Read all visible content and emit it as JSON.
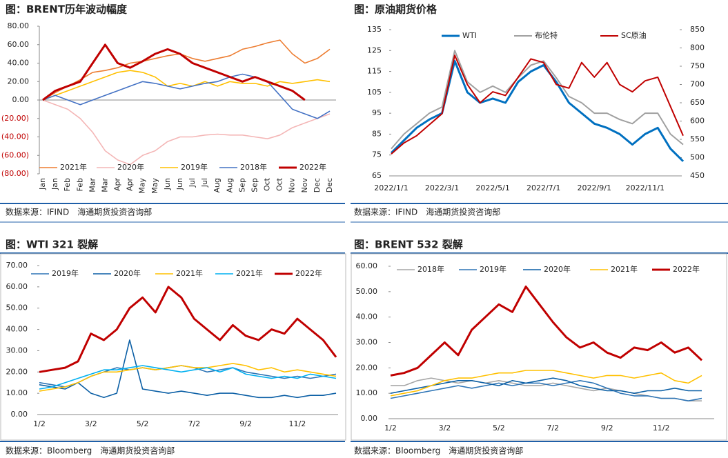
{
  "chart_data": [
    {
      "type": "line",
      "title": "图：BRENT历年波动幅度",
      "source": "数据来源：IFIND　海通期货投资咨询部",
      "categories": [
        "Jan",
        "Jan",
        "Feb",
        "Feb",
        "Mar",
        "Mar",
        "Apr",
        "Apr",
        "May",
        "May",
        "Jun",
        "Jun",
        "Jul",
        "Jul",
        "Aug",
        "Aug",
        "Sep",
        "Sep",
        "Oct",
        "Oct",
        "Nov",
        "Nov",
        "Dec",
        "Dec"
      ],
      "ylim": [
        -80,
        80
      ],
      "yticks": [
        {
          "value": 80,
          "label": "80.00"
        },
        {
          "value": 60,
          "label": "60.00"
        },
        {
          "value": 40,
          "label": "40.00"
        },
        {
          "value": 20,
          "label": "20.00"
        },
        {
          "value": 0,
          "label": "0.00"
        },
        {
          "value": -20,
          "label": "(20.00)"
        },
        {
          "value": -40,
          "label": "(40.00)"
        },
        {
          "value": -60,
          "label": "(60.00)"
        },
        {
          "value": -80,
          "label": "(80.00)"
        }
      ],
      "negative_tick_color": "#c00000",
      "legend": "bottom",
      "series": [
        {
          "name": "2021年",
          "color": "#ed7d31",
          "line_width": 1.6,
          "values": [
            0,
            8,
            15,
            22,
            30,
            32,
            35,
            40,
            42,
            45,
            48,
            50,
            45,
            42,
            45,
            48,
            55,
            58,
            62,
            65,
            50,
            40,
            45,
            55
          ]
        },
        {
          "name": "2020年",
          "color": "#f4b6b6",
          "line_width": 1.6,
          "values": [
            0,
            -5,
            -10,
            -20,
            -35,
            -55,
            -65,
            -70,
            -60,
            -55,
            -45,
            -40,
            -40,
            -38,
            -37,
            -38,
            -38,
            -40,
            -42,
            -38,
            -30,
            -25,
            -20,
            -15
          ]
        },
        {
          "name": "2019年",
          "color": "#ffc000",
          "line_width": 1.6,
          "values": [
            0,
            5,
            10,
            15,
            20,
            25,
            30,
            32,
            30,
            25,
            15,
            18,
            15,
            20,
            15,
            20,
            18,
            18,
            15,
            20,
            18,
            20,
            22,
            20
          ]
        },
        {
          "name": "2018年",
          "color": "#4472c4",
          "line_width": 1.6,
          "values": [
            0,
            5,
            0,
            -5,
            0,
            5,
            10,
            15,
            20,
            18,
            15,
            12,
            15,
            18,
            20,
            25,
            28,
            25,
            20,
            5,
            -10,
            -15,
            -20,
            -12
          ]
        },
        {
          "name": "2022年",
          "color": "#c00000",
          "line_width": 3,
          "values": [
            0,
            10,
            15,
            20,
            40,
            60,
            40,
            35,
            42,
            50,
            55,
            50,
            40,
            35,
            30,
            25,
            20,
            25,
            20,
            15,
            10,
            0,
            null,
            null
          ]
        }
      ]
    },
    {
      "type": "line",
      "title": "图：原油期货价格",
      "source": "数据来源：IFIND　海通期货投资咨询部",
      "categories": [
        "2022/1/1",
        null,
        null,
        null,
        "2022/3/1",
        null,
        null,
        null,
        "2022/5/1",
        null,
        null,
        null,
        "2022/7/1",
        null,
        null,
        null,
        "2022/9/1",
        null,
        null,
        null,
        "2022/11/1",
        null,
        null,
        null
      ],
      "ylim": [
        65,
        135
      ],
      "yticks": [
        65,
        75,
        85,
        95,
        105,
        115,
        125,
        135
      ],
      "y2lim": [
        450,
        850
      ],
      "y2ticks": [
        450,
        500,
        550,
        600,
        650,
        700,
        750,
        800,
        850
      ],
      "legend": "top",
      "series": [
        {
          "name": "WTI",
          "color": "#0070c0",
          "line_width": 3,
          "values": [
            76,
            82,
            88,
            92,
            95,
            120,
            105,
            100,
            102,
            100,
            110,
            115,
            118,
            110,
            100,
            95,
            90,
            88,
            85,
            80,
            85,
            88,
            78,
            72
          ]
        },
        {
          "name": "布伦特",
          "color": "#a0a0a0",
          "line_width": 2,
          "values": [
            78,
            85,
            90,
            95,
            98,
            125,
            110,
            105,
            108,
            105,
            112,
            118,
            120,
            112,
            103,
            100,
            95,
            95,
            92,
            90,
            95,
            95,
            85,
            80
          ]
        },
        {
          "name": "SC原油",
          "color": "#c00000",
          "line_width": 2,
          "axis": "y2",
          "values": [
            510,
            540,
            560,
            590,
            620,
            780,
            700,
            650,
            680,
            670,
            720,
            770,
            760,
            700,
            690,
            760,
            720,
            760,
            700,
            680,
            710,
            720,
            640,
            560
          ]
        }
      ]
    },
    {
      "type": "line",
      "title": "图：WTI 321 裂解",
      "source": "数据来源：Bloomberg　海通期货投资咨询部",
      "categories": [
        "1/2",
        null,
        null,
        null,
        "3/2",
        null,
        null,
        null,
        "5/2",
        null,
        null,
        null,
        "7/2",
        null,
        null,
        null,
        "9/2",
        null,
        null,
        null,
        "11/2",
        null,
        null,
        null
      ],
      "ylim": [
        0,
        70
      ],
      "yticks": [
        {
          "value": 0,
          "label": "0.00"
        },
        {
          "value": 10,
          "label": "10.00"
        },
        {
          "value": 20,
          "label": "20.00"
        },
        {
          "value": 30,
          "label": "30.00"
        },
        {
          "value": 40,
          "label": "40.00"
        },
        {
          "value": 50,
          "label": "50.00"
        },
        {
          "value": 60,
          "label": "60.00"
        },
        {
          "value": 70,
          "label": "70.00"
        }
      ],
      "legend": "top",
      "series": [
        {
          "name": "2019年",
          "color": "#2e75b6",
          "line_width": 1.6,
          "values": [
            15,
            14,
            13,
            15,
            18,
            20,
            22,
            21,
            22,
            21,
            22,
            23,
            22,
            20,
            21,
            22,
            20,
            19,
            18,
            17,
            18,
            17,
            18,
            19
          ]
        },
        {
          "name": "2020年",
          "color": "#0b5fa5",
          "line_width": 1.6,
          "values": [
            14,
            13,
            12,
            15,
            10,
            8,
            10,
            35,
            12,
            11,
            10,
            11,
            10,
            9,
            10,
            10,
            9,
            8,
            8,
            9,
            8,
            9,
            9,
            10
          ]
        },
        {
          "name": "2021年",
          "color": "#ffc000",
          "line_width": 1.6,
          "values": [
            11,
            12,
            13,
            15,
            18,
            20,
            20,
            21,
            22,
            21,
            22,
            23,
            22,
            22,
            23,
            24,
            23,
            21,
            22,
            20,
            21,
            20,
            19,
            18
          ]
        },
        {
          "name": "2021年",
          "color": "#00b0f0",
          "line_width": 1.6,
          "values": [
            12,
            13,
            15,
            17,
            19,
            21,
            21,
            22,
            23,
            22,
            21,
            20,
            21,
            22,
            20,
            22,
            19,
            18,
            17,
            18,
            17,
            19,
            18,
            17
          ]
        },
        {
          "name": "2022年",
          "color": "#c00000",
          "line_width": 3,
          "values": [
            20,
            21,
            22,
            25,
            38,
            35,
            40,
            50,
            55,
            48,
            60,
            55,
            45,
            40,
            35,
            42,
            37,
            35,
            40,
            38,
            45,
            40,
            35,
            27
          ]
        }
      ]
    },
    {
      "type": "line",
      "title": "图：BRENT 532 裂解",
      "source": "数据来源：Bloomberg　海通期货投资咨询部",
      "categories": [
        "1/2",
        null,
        null,
        null,
        "3/2",
        null,
        null,
        null,
        "5/2",
        null,
        null,
        null,
        "7/2",
        null,
        null,
        null,
        "9/2",
        null,
        null,
        null,
        "11/2",
        null,
        null,
        null
      ],
      "ylim": [
        0,
        60
      ],
      "yticks": [
        {
          "value": 0,
          "label": "0.00"
        },
        {
          "value": 10,
          "label": "10.00"
        },
        {
          "value": 20,
          "label": "20.00"
        },
        {
          "value": 30,
          "label": "30.00"
        },
        {
          "value": 40,
          "label": "40.00"
        },
        {
          "value": 50,
          "label": "50.00"
        },
        {
          "value": 60,
          "label": "60.00"
        }
      ],
      "legend": "top",
      "series": [
        {
          "name": "2018年",
          "color": "#a6a6a6",
          "line_width": 1.6,
          "values": [
            13,
            13,
            15,
            16,
            15,
            14,
            15,
            14,
            15,
            14,
            13,
            13,
            14,
            13,
            12,
            11,
            12,
            11,
            10,
            9,
            8,
            8,
            7,
            7
          ]
        },
        {
          "name": "2019年",
          "color": "#2e75b6",
          "line_width": 1.6,
          "values": [
            8,
            9,
            10,
            11,
            12,
            13,
            12,
            13,
            14,
            13,
            14,
            14,
            13,
            14,
            15,
            14,
            12,
            10,
            9,
            9,
            8,
            8,
            7,
            8
          ]
        },
        {
          "name": "2020年",
          "color": "#0b5fa5",
          "line_width": 1.6,
          "values": [
            10,
            11,
            12,
            13,
            14,
            15,
            15,
            14,
            13,
            15,
            14,
            15,
            16,
            15,
            13,
            12,
            11,
            11,
            10,
            11,
            11,
            12,
            11,
            11
          ]
        },
        {
          "name": "2021年",
          "color": "#ffc000",
          "line_width": 1.6,
          "values": [
            9,
            10,
            11,
            13,
            15,
            16,
            16,
            17,
            18,
            18,
            19,
            19,
            19,
            18,
            17,
            16,
            17,
            17,
            16,
            17,
            18,
            15,
            14,
            17
          ]
        },
        {
          "name": "2022年",
          "color": "#c00000",
          "line_width": 3,
          "values": [
            17,
            18,
            20,
            25,
            30,
            25,
            35,
            40,
            45,
            42,
            52,
            45,
            38,
            32,
            28,
            30,
            26,
            24,
            28,
            27,
            30,
            26,
            28,
            23
          ]
        }
      ]
    }
  ]
}
